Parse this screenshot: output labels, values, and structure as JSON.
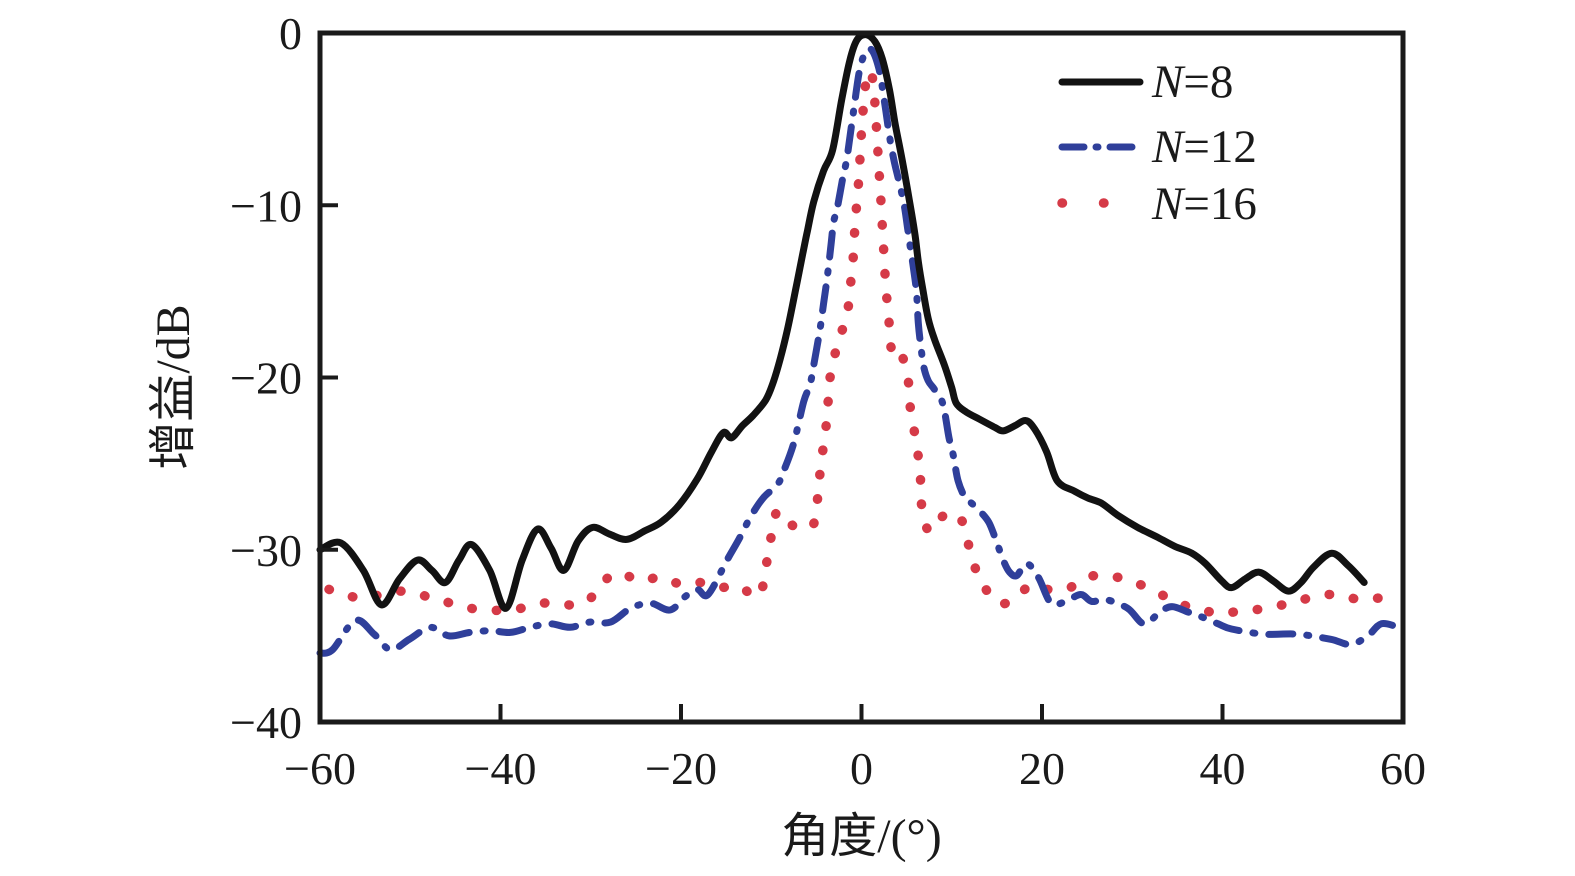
{
  "chart_data": {
    "type": "line",
    "title": "",
    "xlabel": "角度/(°)",
    "ylabel": "增益/dB",
    "xlim": [
      -60,
      60
    ],
    "ylim": [
      -40,
      0
    ],
    "grid": false,
    "legend_position": "top-right",
    "axis_color": "#1a1a1a",
    "background": "#ffffff",
    "x_tick_values": [
      -60,
      -40,
      -20,
      0,
      20,
      40,
      60
    ],
    "x_tick_labels": [
      "−60",
      "−40",
      "−20",
      "0",
      "20",
      "40",
      "60"
    ],
    "y_tick_values": [
      0,
      -10,
      -20,
      -30,
      -40
    ],
    "y_tick_labels": [
      "0",
      "−10",
      "−20",
      "−30",
      "−40"
    ],
    "series": [
      {
        "name": "N=8",
        "legend_var": "N",
        "legend_rest": "=8",
        "color": "#121212",
        "style": "solid",
        "points": [
          [
            -60,
            -30.0
          ],
          [
            -57.7,
            -29.6
          ],
          [
            -55.2,
            -31.2
          ],
          [
            -53.2,
            -33.2
          ],
          [
            -51.2,
            -31.7
          ],
          [
            -49.2,
            -30.6
          ],
          [
            -47.6,
            -31.2
          ],
          [
            -46.1,
            -31.9
          ],
          [
            -44.6,
            -30.6
          ],
          [
            -43.2,
            -29.7
          ],
          [
            -41.2,
            -31.2
          ],
          [
            -39.4,
            -33.4
          ],
          [
            -37.6,
            -30.6
          ],
          [
            -35.9,
            -28.8
          ],
          [
            -34.4,
            -29.9
          ],
          [
            -33.0,
            -31.2
          ],
          [
            -31.4,
            -29.5
          ],
          [
            -29.8,
            -28.7
          ],
          [
            -27.9,
            -29.1
          ],
          [
            -26.0,
            -29.4
          ],
          [
            -24.0,
            -28.9
          ],
          [
            -22.2,
            -28.4
          ],
          [
            -20.2,
            -27.4
          ],
          [
            -18.2,
            -25.9
          ],
          [
            -16.6,
            -24.3
          ],
          [
            -15.3,
            -23.2
          ],
          [
            -14.4,
            -23.5
          ],
          [
            -13.2,
            -22.8
          ],
          [
            -12.0,
            -22.2
          ],
          [
            -10.6,
            -21.3
          ],
          [
            -9.8,
            -20.3
          ],
          [
            -9.0,
            -18.9
          ],
          [
            -8.2,
            -17.2
          ],
          [
            -7.3,
            -14.9
          ],
          [
            -6.5,
            -12.8
          ],
          [
            -6.0,
            -11.5
          ],
          [
            -5.3,
            -9.8
          ],
          [
            -4.2,
            -8.0
          ],
          [
            -3.2,
            -6.8
          ],
          [
            -2.2,
            -3.9
          ],
          [
            -1.3,
            -1.6
          ],
          [
            -0.5,
            -0.4
          ],
          [
            0.5,
            -0.1
          ],
          [
            1.5,
            -0.5
          ],
          [
            2.3,
            -1.5
          ],
          [
            3.1,
            -3.3
          ],
          [
            3.7,
            -5.2
          ],
          [
            4.3,
            -6.8
          ],
          [
            4.8,
            -8.2
          ],
          [
            5.3,
            -9.7
          ],
          [
            5.9,
            -11.6
          ],
          [
            6.3,
            -13.3
          ],
          [
            6.8,
            -14.9
          ],
          [
            7.4,
            -16.6
          ],
          [
            8.1,
            -17.8
          ],
          [
            9.2,
            -19.3
          ],
          [
            10.0,
            -20.6
          ],
          [
            10.5,
            -21.5
          ],
          [
            11.6,
            -22.0
          ],
          [
            13.0,
            -22.4
          ],
          [
            14.8,
            -22.9
          ],
          [
            15.7,
            -23.1
          ],
          [
            17.0,
            -22.8
          ],
          [
            18.2,
            -22.5
          ],
          [
            19.2,
            -23.0
          ],
          [
            20.5,
            -24.3
          ],
          [
            21.7,
            -26.0
          ],
          [
            23.6,
            -26.6
          ],
          [
            25.1,
            -27.0
          ],
          [
            26.6,
            -27.3
          ],
          [
            28.4,
            -28.0
          ],
          [
            30.6,
            -28.7
          ],
          [
            32.9,
            -29.3
          ],
          [
            34.7,
            -29.8
          ],
          [
            36.6,
            -30.2
          ],
          [
            38.1,
            -30.8
          ],
          [
            39.9,
            -31.8
          ],
          [
            41.0,
            -32.2
          ],
          [
            42.5,
            -31.7
          ],
          [
            44.0,
            -31.3
          ],
          [
            45.6,
            -31.8
          ],
          [
            47.3,
            -32.4
          ],
          [
            48.7,
            -31.9
          ],
          [
            50.1,
            -31.0
          ],
          [
            52.1,
            -30.2
          ],
          [
            53.9,
            -30.9
          ],
          [
            55.7,
            -31.9
          ]
        ]
      },
      {
        "name": "N=12",
        "legend_var": "N",
        "legend_rest": "=12",
        "color": "#2f3f9a",
        "style": "dashdot",
        "points": [
          [
            -60,
            -36.0
          ],
          [
            -58.6,
            -35.8
          ],
          [
            -56.1,
            -34.1
          ],
          [
            -54.0,
            -34.9
          ],
          [
            -52.2,
            -35.8
          ],
          [
            -50.1,
            -35.2
          ],
          [
            -47.8,
            -34.5
          ],
          [
            -45.7,
            -35.0
          ],
          [
            -43.4,
            -34.8
          ],
          [
            -41.1,
            -34.7
          ],
          [
            -38.9,
            -34.8
          ],
          [
            -36.7,
            -34.5
          ],
          [
            -34.5,
            -34.3
          ],
          [
            -32.3,
            -34.5
          ],
          [
            -30.1,
            -34.2
          ],
          [
            -27.8,
            -34.2
          ],
          [
            -25.6,
            -33.4
          ],
          [
            -23.4,
            -33.1
          ],
          [
            -21.2,
            -33.5
          ],
          [
            -19.5,
            -32.7
          ],
          [
            -18.2,
            -32.3
          ],
          [
            -17.0,
            -32.6
          ],
          [
            -14.9,
            -30.6
          ],
          [
            -13.7,
            -29.5
          ],
          [
            -12.3,
            -28.1
          ],
          [
            -10.9,
            -27.0
          ],
          [
            -9.3,
            -26.2
          ],
          [
            -8.6,
            -25.4
          ],
          [
            -7.5,
            -23.8
          ],
          [
            -6.4,
            -21.4
          ],
          [
            -5.7,
            -20.4
          ],
          [
            -5.2,
            -19.0
          ],
          [
            -4.6,
            -17.2
          ],
          [
            -4.2,
            -15.7
          ],
          [
            -3.8,
            -14.2
          ],
          [
            -3.4,
            -12.4
          ],
          [
            -3.1,
            -11.0
          ],
          [
            -2.7,
            -10.2
          ],
          [
            -2.1,
            -8.5
          ],
          [
            -1.6,
            -7.2
          ],
          [
            -0.9,
            -4.6
          ],
          [
            -0.1,
            -1.9
          ],
          [
            0.9,
            -0.9
          ],
          [
            1.9,
            -2.0
          ],
          [
            2.6,
            -4.2
          ],
          [
            3.1,
            -6.0
          ],
          [
            3.6,
            -7.4
          ],
          [
            4.1,
            -8.5
          ],
          [
            4.7,
            -9.9
          ],
          [
            5.1,
            -11.3
          ],
          [
            5.4,
            -12.4
          ],
          [
            5.8,
            -13.8
          ],
          [
            6.1,
            -15.1
          ],
          [
            6.3,
            -16.9
          ],
          [
            6.6,
            -18.3
          ],
          [
            6.9,
            -19.4
          ],
          [
            7.4,
            -20.2
          ],
          [
            8.1,
            -20.7
          ],
          [
            9.0,
            -21.5
          ],
          [
            9.7,
            -23.5
          ],
          [
            10.2,
            -24.6
          ],
          [
            10.7,
            -26.0
          ],
          [
            11.5,
            -27.0
          ],
          [
            12.2,
            -27.3
          ],
          [
            13.2,
            -27.8
          ],
          [
            14.1,
            -28.4
          ],
          [
            14.8,
            -29.3
          ],
          [
            15.7,
            -30.6
          ],
          [
            16.4,
            -31.3
          ],
          [
            17.2,
            -31.5
          ],
          [
            18.3,
            -30.8
          ],
          [
            19.6,
            -31.6
          ],
          [
            21.0,
            -33.1
          ],
          [
            22.6,
            -33.0
          ],
          [
            24.3,
            -32.6
          ],
          [
            25.5,
            -33.0
          ],
          [
            27.1,
            -32.9
          ],
          [
            29.5,
            -33.4
          ],
          [
            31.3,
            -34.3
          ],
          [
            33.1,
            -33.6
          ],
          [
            34.4,
            -33.3
          ],
          [
            36.1,
            -33.6
          ],
          [
            37.7,
            -33.9
          ],
          [
            39.5,
            -34.3
          ],
          [
            41.0,
            -34.6
          ],
          [
            44.6,
            -34.9
          ],
          [
            48.3,
            -34.9
          ],
          [
            52.0,
            -35.2
          ],
          [
            54.2,
            -35.5
          ],
          [
            56.1,
            -35.0
          ],
          [
            57.6,
            -34.3
          ],
          [
            59.5,
            -34.5
          ]
        ]
      },
      {
        "name": "N=16",
        "legend_var": "N",
        "legend_rest": "=16",
        "color": "#d53a47",
        "style": "dotted",
        "points": [
          [
            -59.0,
            -32.3
          ],
          [
            -55.4,
            -32.8
          ],
          [
            -51.3,
            -32.4
          ],
          [
            -47.5,
            -32.8
          ],
          [
            -43.3,
            -33.4
          ],
          [
            -38.9,
            -33.5
          ],
          [
            -35.2,
            -33.1
          ],
          [
            -30.8,
            -33.1
          ],
          [
            -27.5,
            -31.4
          ],
          [
            -24.5,
            -31.8
          ],
          [
            -22.3,
            -31.6
          ],
          [
            -20.0,
            -32.0
          ],
          [
            -17.9,
            -31.9
          ],
          [
            -15.8,
            -32.2
          ],
          [
            -13.7,
            -32.1
          ],
          [
            -11.4,
            -32.7
          ],
          [
            -10.6,
            -31.0
          ],
          [
            -10.1,
            -29.5
          ],
          [
            -9.4,
            -27.8
          ],
          [
            -8.4,
            -28.2
          ],
          [
            -7.3,
            -28.7
          ],
          [
            -6.2,
            -28.6
          ],
          [
            -5.3,
            -28.5
          ],
          [
            -4.8,
            -26.7
          ],
          [
            -4.5,
            -25.0
          ],
          [
            -4.0,
            -23.2
          ],
          [
            -3.7,
            -21.4
          ],
          [
            -3.4,
            -19.7
          ],
          [
            -2.6,
            -18.0
          ],
          [
            -1.6,
            -16.3
          ],
          [
            -1.2,
            -14.5
          ],
          [
            -0.9,
            -12.9
          ],
          [
            -0.7,
            -11.0
          ],
          [
            -0.4,
            -9.2
          ],
          [
            -0.2,
            -7.6
          ],
          [
            0.1,
            -5.0
          ],
          [
            0.5,
            -2.8
          ],
          [
            0.9,
            -2.2
          ],
          [
            1.3,
            -2.9
          ],
          [
            1.6,
            -5.0
          ],
          [
            1.9,
            -7.6
          ],
          [
            2.1,
            -9.3
          ],
          [
            2.3,
            -11.2
          ],
          [
            2.5,
            -13.0
          ],
          [
            2.7,
            -14.8
          ],
          [
            3.0,
            -16.4
          ],
          [
            3.3,
            -18.3
          ],
          [
            4.1,
            -18.2
          ],
          [
            5.1,
            -19.9
          ],
          [
            5.4,
            -21.7
          ],
          [
            6.0,
            -23.6
          ],
          [
            6.5,
            -25.5
          ],
          [
            6.6,
            -27.2
          ],
          [
            7.4,
            -28.9
          ],
          [
            8.5,
            -28.3
          ],
          [
            9.7,
            -27.8
          ],
          [
            10.5,
            -28.1
          ],
          [
            11.3,
            -28.5
          ],
          [
            12.1,
            -30.2
          ],
          [
            13.2,
            -31.8
          ],
          [
            15.2,
            -33.1
          ],
          [
            17.0,
            -32.8
          ],
          [
            18.7,
            -32.1
          ],
          [
            20.6,
            -32.3
          ],
          [
            22.6,
            -32.3
          ],
          [
            24.1,
            -31.9
          ],
          [
            25.8,
            -31.5
          ],
          [
            28.4,
            -31.6
          ],
          [
            31.7,
            -32.2
          ],
          [
            35.1,
            -33.1
          ],
          [
            37.2,
            -33.4
          ],
          [
            39.5,
            -33.7
          ],
          [
            41.5,
            -33.6
          ],
          [
            43.5,
            -33.5
          ],
          [
            45.6,
            -33.3
          ],
          [
            47.6,
            -33.1
          ],
          [
            49.6,
            -32.8
          ],
          [
            51.7,
            -32.6
          ],
          [
            53.5,
            -32.7
          ],
          [
            55.3,
            -32.9
          ],
          [
            57.4,
            -32.8
          ],
          [
            59.5,
            -32.7
          ]
        ]
      }
    ]
  }
}
